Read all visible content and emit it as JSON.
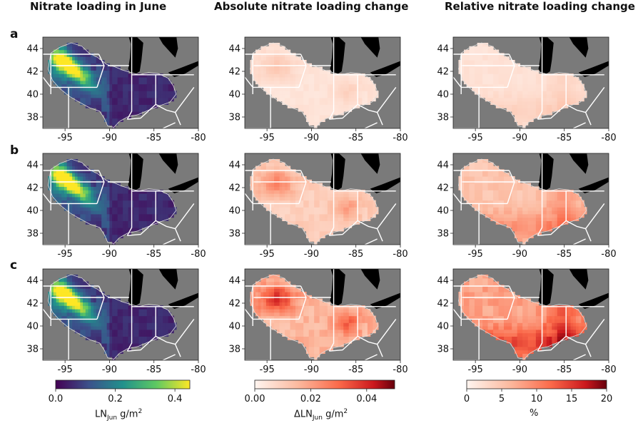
{
  "figure": {
    "column_titles": [
      "Nitrate loading in June",
      "Absolute nitrate loading change",
      "Relative nitrate loading change"
    ],
    "row_labels": [
      "a",
      "b",
      "c"
    ]
  },
  "colorbars": [
    {
      "ticks": [
        "0.0",
        "0.2",
        "0.4"
      ],
      "label_main": "LN",
      "label_sub": "Jun",
      "label_unit": " g/m",
      "label_sup": "2",
      "colormap": "viridis"
    },
    {
      "ticks": [
        "0.00",
        "0.02",
        "0.04"
      ],
      "label_main": "ΔLN",
      "label_sub": "Jun",
      "label_unit": " g/m",
      "label_sup": "2",
      "colormap": "reds"
    },
    {
      "ticks": [
        "0",
        "5",
        "10",
        "15",
        "20"
      ],
      "label_main": "%",
      "label_sub": "",
      "label_unit": "",
      "label_sup": "",
      "colormap": "reds"
    }
  ],
  "colors": {
    "ocean": "#7a7a7a",
    "lake": "#000000",
    "border": "#ffffff"
  },
  "chart_data": {
    "type": "heatmap",
    "description_free": true,
    "x_ticks": [
      -95,
      -90,
      -85,
      -80
    ],
    "y_ticks": [
      44,
      42,
      40,
      38
    ],
    "x_tick_labels": [
      "-95",
      "-90",
      "-85",
      "-80"
    ],
    "y_tick_labels": [
      "44",
      "42",
      "40",
      "38"
    ],
    "xlim": [
      -97.5,
      -80
    ],
    "ylim": [
      37,
      45
    ],
    "columns": [
      {
        "title": "Nitrate loading in June",
        "variable": "LN_Jun",
        "unit": "g/m2",
        "range": [
          0,
          0.45
        ]
      },
      {
        "title": "Absolute nitrate loading change",
        "variable": "dLN_Jun",
        "unit": "g/m2",
        "range": [
          0,
          0.05
        ]
      },
      {
        "title": "Relative nitrate loading change",
        "variable": "relative change",
        "unit": "%",
        "range": [
          0,
          20
        ]
      }
    ],
    "rows": [
      "a",
      "b",
      "c"
    ],
    "panel_intensity": [
      [
        1.0,
        0.25,
        0.22
      ],
      [
        1.0,
        0.55,
        0.55
      ],
      [
        1.0,
        0.85,
        0.85
      ]
    ]
  }
}
